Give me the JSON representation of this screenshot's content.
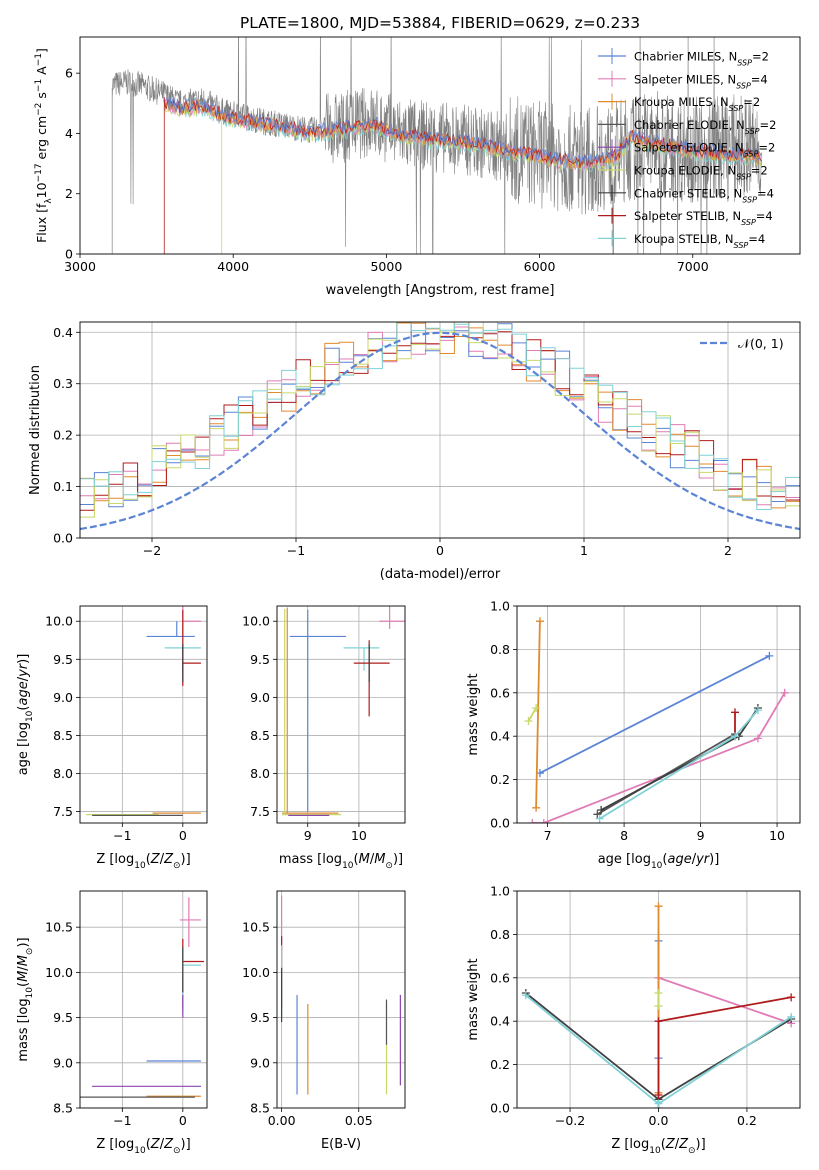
{
  "figure": {
    "title": "PLATE=1800, MJD=53884, FIBERID=0629, z=0.233"
  },
  "colors": {
    "chabrier_miles": "#5b84d6",
    "salpeter_miles": "#e07bb5",
    "kroupa_miles": "#e08a2e",
    "chabrier_elodie": "#555555",
    "salpeter_elodie": "#8e44ad",
    "kroupa_elodie": "#c8d86a",
    "chabrier_stelib": "#404040",
    "salpeter_stelib": "#b01c1c",
    "kroupa_stelib": "#7fd1d6",
    "data_grey": "#808080",
    "gauss": "#5b84d6"
  },
  "chart_data": [
    {
      "id": "spectrum",
      "type": "line",
      "xlabel": "wavelength [Angstrom, rest frame]",
      "ylabel": "Flux [f_λ 10^-17 erg cm^-2 s^-1 A^-1]",
      "xlim": [
        3000,
        7700
      ],
      "ylim": [
        0,
        7.2
      ],
      "xticks": [
        3000,
        4000,
        5000,
        6000,
        7000
      ],
      "yticks": [
        0,
        2,
        4,
        6
      ],
      "grid": false,
      "legend_position": "upper right",
      "legend": [
        {
          "label": "Chabrier MILES, N_SSP=2",
          "color": "chabrier_miles"
        },
        {
          "label": "Salpeter MILES, N_SSP=4",
          "color": "salpeter_miles"
        },
        {
          "label": "Kroupa MILES, N_SSP=2",
          "color": "kroupa_miles"
        },
        {
          "label": "Chabrier ELODIE, N_SSP=2",
          "color": "chabrier_elodie"
        },
        {
          "label": "Salpeter ELODIE, N_SSP=2",
          "color": "salpeter_elodie"
        },
        {
          "label": "Kroupa ELODIE, N_SSP=2",
          "color": "kroupa_elodie"
        },
        {
          "label": "Chabrier STELIB, N_SSP=4",
          "color": "chabrier_stelib"
        },
        {
          "label": "Salpeter STELIB, N_SSP=4",
          "color": "salpeter_stelib"
        },
        {
          "label": "Kroupa STELIB, N_SSP=4",
          "color": "kroupa_stelib"
        }
      ],
      "data_trend": {
        "x": [
          3210,
          3300,
          3400,
          3550,
          3650,
          3800,
          3950,
          4100,
          4300,
          4500,
          4700,
          4900,
          5100,
          5300,
          5500,
          5700,
          5900,
          6100,
          6300,
          6500,
          6700,
          6900
        ],
        "y": [
          5.6,
          5.7,
          5.6,
          5.3,
          5.0,
          5.1,
          4.7,
          4.5,
          4.3,
          4.1,
          4.2,
          4.4,
          4.0,
          3.9,
          3.8,
          3.6,
          3.4,
          3.2,
          3.1,
          3.3,
          3.7,
          3.5
        ]
      },
      "model_trend": {
        "x": [
          3550,
          3650,
          3800,
          3950,
          4100,
          4300,
          4500,
          4700,
          4900,
          5100,
          5300,
          5500,
          5700,
          5900,
          6100,
          6300,
          6500,
          6600,
          6700,
          6800,
          6900,
          7000,
          7200,
          7400
        ],
        "y": [
          5.0,
          4.8,
          4.9,
          4.5,
          4.4,
          4.2,
          4.0,
          4.1,
          4.3,
          3.9,
          3.8,
          3.7,
          3.5,
          3.3,
          3.1,
          3.0,
          3.2,
          3.9,
          3.7,
          3.6,
          3.5,
          3.4,
          3.3,
          3.2
        ]
      }
    },
    {
      "id": "residuals",
      "type": "line",
      "xlabel": "(data-model)/error",
      "ylabel": "Normed distribution",
      "xlim": [
        -2.5,
        2.5
      ],
      "ylim": [
        0,
        0.42
      ],
      "xticks": [
        -2,
        -1,
        0,
        1,
        2
      ],
      "yticks": [
        0.0,
        0.1,
        0.2,
        0.3,
        0.4
      ],
      "grid": true,
      "legend_position": "upper right",
      "legend_label": "𝒩(0, 1)",
      "gauss": {
        "mean": 0,
        "sigma": 1
      }
    },
    {
      "id": "age_vs_Z",
      "type": "scatter",
      "xlabel": "Z [log10(Z/Z⊙)]",
      "ylabel": "age [log10(age/yr)]",
      "xlim": [
        -1.7,
        0.4
      ],
      "ylim": [
        7.35,
        10.2
      ],
      "xticks": [
        -1,
        0
      ],
      "yticks": [
        7.5,
        8.0,
        8.5,
        9.0,
        9.5,
        10.0
      ],
      "grid": true,
      "points": [
        {
          "color": "salpeter_miles",
          "x": 0.0,
          "y": 10.0,
          "xerr": [
            0.0,
            0.3
          ],
          "yerr": [
            0.2,
            0.2
          ]
        },
        {
          "color": "chabrier_miles",
          "x": -0.1,
          "y": 9.8,
          "xerr": [
            0.5,
            0.3
          ],
          "yerr": [
            0.0,
            0.2
          ]
        },
        {
          "color": "kroupa_stelib",
          "x": 0.0,
          "y": 9.65,
          "xerr": [
            0.3,
            0.3
          ],
          "yerr": [
            0.3,
            0.0
          ]
        },
        {
          "color": "salpeter_stelib",
          "x": 0.0,
          "y": 9.45,
          "xerr": [
            0.0,
            0.3
          ],
          "yerr": [
            0.3,
            0.7
          ]
        },
        {
          "color": "chabrier_stelib",
          "x": 0.0,
          "y": 9.3,
          "xerr": [
            0.0,
            0.0
          ],
          "yerr": [
            0.1,
            0.4
          ]
        },
        {
          "color": "kroupa_miles",
          "x": -0.5,
          "y": 7.48,
          "xerr": [
            0.0,
            0.8
          ],
          "yerr": [
            0.0,
            0.0
          ]
        },
        {
          "color": "kroupa_elodie",
          "x": -0.7,
          "y": 7.46,
          "xerr": [
            0.9,
            0.3
          ],
          "yerr": [
            0.0,
            0.0
          ]
        },
        {
          "color": "chabrier_elodie",
          "x": -1.5,
          "y": 7.45,
          "xerr": [
            0.0,
            1.5
          ],
          "yerr": [
            0.0,
            0.0
          ]
        }
      ]
    },
    {
      "id": "age_vs_mass",
      "type": "scatter",
      "xlabel": "mass [log10(M/M⊙)]",
      "ylabel": "",
      "xlim": [
        8.4,
        10.9
      ],
      "ylim": [
        7.35,
        10.2
      ],
      "xticks": [
        9,
        10
      ],
      "yticks": [
        7.5,
        8.0,
        8.5,
        9.0,
        9.5,
        10.0
      ],
      "grid": true,
      "points": [
        {
          "color": "salpeter_miles",
          "x": 10.6,
          "y": 10.0,
          "xerr": [
            0.2,
            0.3
          ],
          "yerr": [
            0.1,
            0.2
          ]
        },
        {
          "color": "chabrier_miles",
          "x": 9.0,
          "y": 9.8,
          "xerr": [
            0.35,
            0.75
          ],
          "yerr": [
            2.3,
            0.35
          ]
        },
        {
          "color": "kroupa_stelib",
          "x": 10.1,
          "y": 9.65,
          "xerr": [
            0.4,
            0.3
          ],
          "yerr": [
            0.3,
            0.0
          ]
        },
        {
          "color": "salpeter_stelib",
          "x": 10.2,
          "y": 9.45,
          "xerr": [
            0.3,
            0.4
          ],
          "yerr": [
            0.7,
            0.3
          ]
        },
        {
          "color": "chabrier_stelib",
          "x": 10.2,
          "y": 9.3,
          "xerr": [
            0.0,
            0.0
          ],
          "yerr": [
            0.1,
            0.4
          ]
        },
        {
          "color": "kroupa_miles",
          "x": 8.6,
          "y": 7.48,
          "xerr": [
            0.1,
            1.0
          ],
          "yerr": [
            0.0,
            2.7
          ]
        },
        {
          "color": "kroupa_elodie",
          "x": 8.55,
          "y": 7.46,
          "xerr": [
            0.05,
            1.1
          ],
          "yerr": [
            0.0,
            2.7
          ]
        },
        {
          "color": "salpeter_elodie",
          "x": 8.62,
          "y": 7.45,
          "xerr": [
            0.0,
            0.8
          ],
          "yerr": [
            0.0,
            0.0
          ]
        }
      ]
    },
    {
      "id": "weight_vs_age",
      "type": "line",
      "xlabel": "age [log10(age/yr)]",
      "ylabel": "mass weight",
      "xlim": [
        6.6,
        10.3
      ],
      "ylim": [
        0.0,
        1.0
      ],
      "xticks": [
        7,
        8,
        9,
        10
      ],
      "yticks": [
        0.0,
        0.2,
        0.4,
        0.6,
        0.8,
        1.0
      ],
      "grid": true,
      "series": [
        {
          "color": "chabrier_miles",
          "x": [
            6.9,
            9.9
          ],
          "y": [
            0.23,
            0.77
          ]
        },
        {
          "color": "salpeter_miles",
          "x": [
            6.8,
            6.95,
            9.75,
            10.1
          ],
          "y": [
            0.0,
            0.0,
            0.39,
            0.6
          ]
        },
        {
          "color": "kroupa_miles",
          "x": [
            6.85,
            6.9
          ],
          "y": [
            0.07,
            0.93
          ]
        },
        {
          "color": "chabrier_elodie",
          "x": [
            7.65,
            9.45
          ],
          "y": [
            0.04,
            0.41
          ]
        },
        {
          "color": "kroupa_elodie",
          "x": [
            6.75,
            6.85
          ],
          "y": [
            0.47,
            0.53
          ]
        },
        {
          "color": "chabrier_stelib",
          "x": [
            7.7,
            9.5,
            9.75
          ],
          "y": [
            0.06,
            0.4,
            0.53
          ]
        },
        {
          "color": "salpeter_stelib",
          "x": [
            9.45,
            9.45
          ],
          "y": [
            0.4,
            0.51
          ]
        },
        {
          "color": "kroupa_stelib",
          "x": [
            7.68,
            9.45,
            9.75
          ],
          "y": [
            0.02,
            0.4,
            0.52
          ]
        }
      ]
    },
    {
      "id": "mass_vs_Z",
      "type": "scatter",
      "xlabel": "Z [log10(Z/Z⊙)]",
      "ylabel": "mass [log10(M/M⊙)]",
      "xlim": [
        -1.7,
        0.4
      ],
      "ylim": [
        8.5,
        10.9
      ],
      "xticks": [
        -1,
        0
      ],
      "yticks": [
        8.5,
        9.0,
        9.5,
        10.0,
        10.5
      ],
      "grid": true,
      "points": [
        {
          "color": "salpeter_miles",
          "x": 0.1,
          "y": 10.58,
          "xerr": [
            0.15,
            0.2
          ],
          "yerr": [
            0.3,
            0.25
          ]
        },
        {
          "color": "salpeter_stelib",
          "x": 0.0,
          "y": 10.12,
          "xerr": [
            0.0,
            0.35
          ],
          "yerr": [
            0.5,
            0.25
          ]
        },
        {
          "color": "kroupa_stelib",
          "x": 0.0,
          "y": 10.08,
          "xerr": [
            0.0,
            0.3
          ],
          "yerr": [
            0.5,
            0.2
          ]
        },
        {
          "color": "chabrier_stelib",
          "x": 0.0,
          "y": 10.08,
          "xerr": [
            0.0,
            0.0
          ],
          "yerr": [
            0.3,
            0.2
          ]
        },
        {
          "color": "salpeter_elodie",
          "x": 0.0,
          "y": 9.6,
          "xerr": [
            0.0,
            0.0
          ],
          "yerr": [
            0.1,
            0.15
          ]
        },
        {
          "color": "chabrier_miles",
          "x": -0.6,
          "y": 9.02,
          "xerr": [
            0.0,
            0.9
          ],
          "yerr": [
            0.0,
            0.0
          ]
        },
        {
          "color": "salpeter_elodie",
          "x": -1.5,
          "y": 8.74,
          "xerr": [
            0.0,
            1.8
          ],
          "yerr": [
            0.0,
            0.0
          ]
        },
        {
          "color": "kroupa_miles",
          "x": -0.6,
          "y": 8.63,
          "xerr": [
            0.0,
            0.9
          ],
          "yerr": [
            0.0,
            0.0
          ]
        },
        {
          "color": "chabrier_elodie",
          "x": -1.7,
          "y": 8.62,
          "xerr": [
            0.0,
            1.9
          ],
          "yerr": [
            0.0,
            0.0
          ]
        }
      ]
    },
    {
      "id": "mass_vs_ebv",
      "type": "scatter",
      "xlabel": "E(B-V)",
      "ylabel": "",
      "xlim": [
        -0.003,
        0.08
      ],
      "ylim": [
        8.5,
        10.9
      ],
      "xticks": [
        0.0,
        0.05
      ],
      "yticks": [
        8.5,
        9.0,
        9.5,
        10.0,
        10.5
      ],
      "grid": true,
      "points": [
        {
          "color": "salpeter_miles",
          "x": 0.0,
          "y": 10.55,
          "xerr": [
            0.0,
            0.0
          ],
          "yerr": [
            0.3,
            0.3
          ]
        },
        {
          "color": "salpeter_stelib",
          "x": 0.0,
          "y": 10.0,
          "xerr": [
            0.0,
            0.0
          ],
          "yerr": [
            0.4,
            0.4
          ]
        },
        {
          "color": "kroupa_stelib",
          "x": 0.0,
          "y": 10.0,
          "xerr": [
            0.0,
            0.0
          ],
          "yerr": [
            0.5,
            0.3
          ]
        },
        {
          "color": "chabrier_stelib",
          "x": 0.0,
          "y": 9.75,
          "xerr": [
            0.0,
            0.0
          ],
          "yerr": [
            0.3,
            0.3
          ]
        },
        {
          "color": "chabrier_miles",
          "x": 0.01,
          "y": 9.2,
          "xerr": [
            0.0,
            0.0
          ],
          "yerr": [
            0.55,
            0.55
          ]
        },
        {
          "color": "kroupa_miles",
          "x": 0.017,
          "y": 9.15,
          "xerr": [
            0.0,
            0.0
          ],
          "yerr": [
            0.5,
            0.5
          ]
        },
        {
          "color": "kroupa_elodie",
          "x": 0.068,
          "y": 9.15,
          "xerr": [
            0.0,
            0.0
          ],
          "yerr": [
            0.5,
            0.5
          ]
        },
        {
          "color": "chabrier_elodie",
          "x": 0.068,
          "y": 9.5,
          "xerr": [
            0.0,
            0.0
          ],
          "yerr": [
            0.3,
            0.2
          ]
        },
        {
          "color": "salpeter_elodie",
          "x": 0.077,
          "y": 9.25,
          "xerr": [
            0.0,
            0.0
          ],
          "yerr": [
            0.5,
            0.5
          ]
        }
      ]
    },
    {
      "id": "weight_vs_Z",
      "type": "line",
      "xlabel": "Z [log10(Z/Z⊙)]",
      "ylabel": "mass weight",
      "xlim": [
        -0.32,
        0.32
      ],
      "ylim": [
        0.0,
        1.0
      ],
      "xticks": [
        -0.2,
        0.0,
        0.2
      ],
      "yticks": [
        0.0,
        0.2,
        0.4,
        0.6,
        0.8,
        1.0
      ],
      "grid": true,
      "series": [
        {
          "color": "chabrier_miles",
          "x": [
            0.0,
            0.0
          ],
          "y": [
            0.23,
            0.77
          ]
        },
        {
          "color": "salpeter_miles",
          "x": [
            0.0,
            0.0,
            0.3
          ],
          "y": [
            0.0,
            0.6,
            0.39
          ]
        },
        {
          "color": "kroupa_miles",
          "x": [
            0.0,
            0.0
          ],
          "y": [
            0.07,
            0.93
          ]
        },
        {
          "color": "kroupa_elodie",
          "x": [
            0.0,
            0.0
          ],
          "y": [
            0.47,
            0.53
          ]
        },
        {
          "color": "chabrier_stelib",
          "x": [
            -0.3,
            0.0,
            0.3
          ],
          "y": [
            0.53,
            0.04,
            0.41
          ]
        },
        {
          "color": "salpeter_stelib",
          "x": [
            0.0,
            0.0,
            0.3
          ],
          "y": [
            0.06,
            0.4,
            0.51
          ]
        },
        {
          "color": "kroupa_stelib",
          "x": [
            -0.3,
            0.0,
            0.3
          ],
          "y": [
            0.52,
            0.02,
            0.42
          ]
        }
      ]
    }
  ]
}
